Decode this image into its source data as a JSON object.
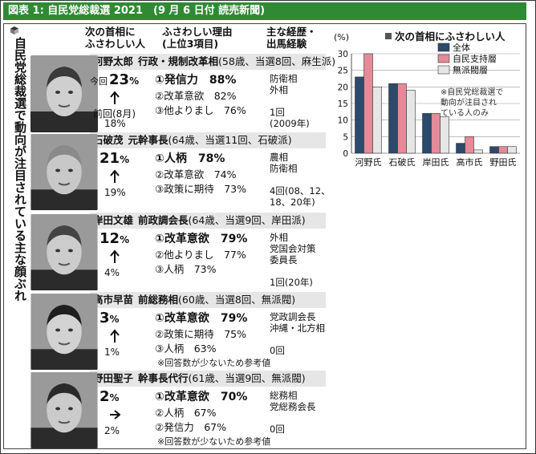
{
  "figure_title": "図表 1: 自民党総裁選 2021　(9 月 6 日付 読売新聞)",
  "side_title": "自民党総裁選で動向が注目されている主な顔ぶれ",
  "headers": {
    "col1": "次の首相に\nふさわしい人",
    "col2": "ふさわしい理由\n(上位3項目)",
    "col3": "主な経歴・\n出馬経験"
  },
  "candidates": [
    {
      "name_line": "河野太郎",
      "title": "行政・規制改革相",
      "info": "(58歳、当選8回、麻生派)",
      "now_label": "今回",
      "now": "23",
      "pct": "%",
      "prev_label": "前回(8月)",
      "prev": "18%",
      "trend": "up",
      "reasons": [
        "①発信力　88%",
        "②改革意欲　82%",
        "③他よりまし　76%"
      ],
      "career": [
        "防衛相",
        "外相",
        "",
        "1回",
        "(2009年)"
      ],
      "note": ""
    },
    {
      "name_line": "石破茂",
      "title": "元幹事長",
      "info": "(64歳、当選11回、石破派)",
      "now_label": "",
      "now": "21",
      "pct": "%",
      "prev_label": "",
      "prev": "19%",
      "trend": "up",
      "reasons": [
        "①人柄　78%",
        "②改革意欲　74%",
        "③政策に期待　73%"
      ],
      "career": [
        "農相",
        "防衛相",
        "",
        "4回(08、12、",
        "18、20年)"
      ],
      "note": ""
    },
    {
      "name_line": "岸田文雄",
      "title": "前政調会長",
      "info": "(64歳、当選9回、岸田派)",
      "now_label": "",
      "now": "12",
      "pct": "%",
      "prev_label": "",
      "prev": "4%",
      "trend": "up",
      "reasons": [
        "①改革意欲　79%",
        "②他よりまし　77%",
        "③人柄　73%"
      ],
      "career": [
        "外相",
        "党国会対策",
        "委員長",
        "",
        "1回(20年)"
      ],
      "note": ""
    },
    {
      "name_line": "高市早苗",
      "title": "前総務相",
      "info": "(60歳、当選8回、無派閥)",
      "now_label": "",
      "now": "3",
      "pct": "%",
      "prev_label": "",
      "prev": "1%",
      "trend": "up",
      "reasons": [
        "①改革意欲　79%",
        "②政策に期待　75%",
        "③人柄　63%"
      ],
      "career": [
        "党政調会長",
        "沖縄・北方相",
        "",
        "0回",
        ""
      ],
      "note": "※回答数が少ないため参考値"
    },
    {
      "name_line": "野田聖子",
      "title": "幹事長代行",
      "info": "(61歳、当選9回、無派閥)",
      "now_label": "",
      "now": "2",
      "pct": "%",
      "prev_label": "",
      "prev": "2%",
      "trend": "flat",
      "reasons": [
        "①改革意欲　70%",
        "②人柄　67%",
        "②発信力　67%"
      ],
      "career": [
        "総務相",
        "党総務会長",
        "",
        "0回",
        ""
      ],
      "note": "※回答数が少ないため参考値"
    }
  ],
  "chart_data": {
    "type": "bar",
    "title": "次の首相にふさわしい人",
    "unit_label": "(%)",
    "categories": [
      "河野氏",
      "石破氏",
      "岸田氏",
      "高市氏",
      "野田氏"
    ],
    "series": [
      {
        "name": "全体",
        "color": "#2c4a6b",
        "values": [
          23,
          21,
          12,
          3,
          2
        ]
      },
      {
        "name": "自民支持層",
        "color": "#e58a98",
        "values": [
          30,
          21,
          12,
          5,
          2
        ]
      },
      {
        "name": "無派閥層",
        "color": "#e6e6e6",
        "values": [
          20,
          19,
          11,
          1,
          2
        ]
      }
    ],
    "ylim": [
      0,
      30
    ],
    "yticks": [
      0,
      5,
      10,
      15,
      20,
      25,
      30
    ],
    "grid": true,
    "legend": "top-right",
    "annotation": "※自民党総裁選で\n動向が注目され\nている人のみ"
  }
}
